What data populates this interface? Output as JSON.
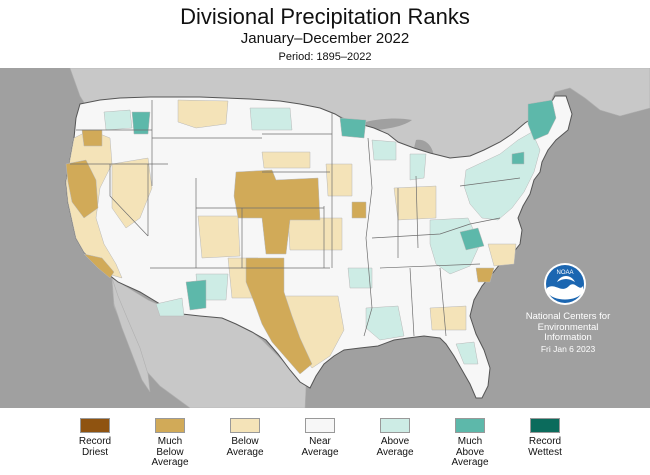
{
  "header": {
    "title": "Divisional Precipitation Ranks",
    "subtitle": "January–December 2022",
    "period": "Period: 1895–2022"
  },
  "colors": {
    "ocean": "#a0a0a0",
    "land_outside": "#c8c8c8",
    "record_driest": "#8f5310",
    "much_below": "#d1aa58",
    "below": "#f4e3b8",
    "near": "#f7f7f7",
    "above": "#cdece5",
    "much_above": "#5db8aa",
    "record_wettest": "#0b6b5c",
    "division_border": "#b8b8b8",
    "state_border": "#6e6e6e"
  },
  "logo": {
    "name": "noaa-logo",
    "text": "NOAA"
  },
  "credit": {
    "line1": "National Centers for",
    "line2": "Environmental",
    "line3": "Information",
    "date": "Fri Jan  6 2023"
  },
  "legend": [
    {
      "label": "Record\nDriest",
      "color": "#8f5310"
    },
    {
      "label": "Much\nBelow\nAverage",
      "color": "#d1aa58"
    },
    {
      "label": "Below\nAverage",
      "color": "#f4e3b8"
    },
    {
      "label": "Near\nAverage",
      "color": "#f7f7f7"
    },
    {
      "label": "Above\nAverage",
      "color": "#cdece5"
    },
    {
      "label": "Much\nAbove\nAverage",
      "color": "#5db8aa"
    },
    {
      "label": "Record\nWettest",
      "color": "#0b6b5c"
    }
  ]
}
